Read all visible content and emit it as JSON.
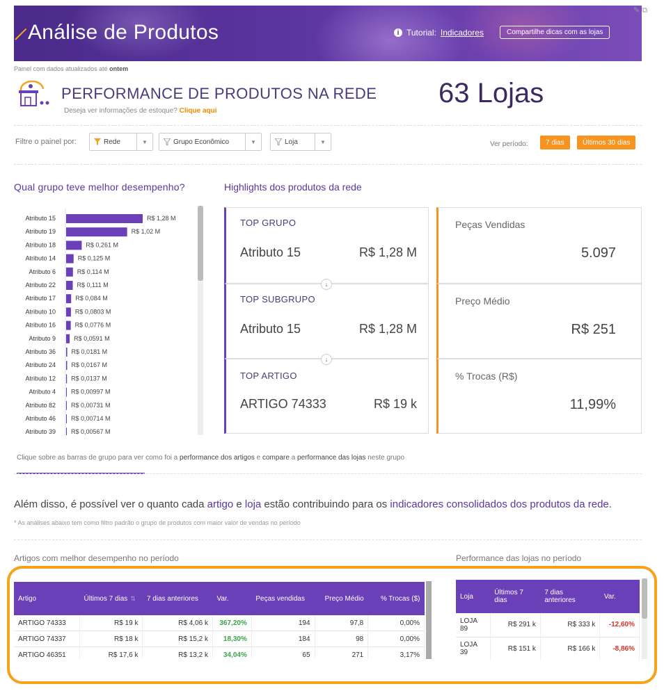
{
  "banner": {
    "title": "Análise de Produtos",
    "tutorial_label": "Tutorial:",
    "tutorial_link": "Indicadores",
    "share_button": "Compartilhe dicas com as lojas",
    "corner_icons": "✎ ⧉"
  },
  "updated": {
    "prefix": "Painel com dados atualizados até",
    "value": "ontem"
  },
  "performance": {
    "title": "PERFORMANCE DE PRODUTOS NA REDE",
    "sub_text": "Deseja ver informações de estoque?",
    "sub_link": "Clique aqui",
    "lojas": "63 Lojas"
  },
  "filters": {
    "label": "Filtre o painel por:",
    "buttons": [
      "Rede",
      "Grupo Econômico",
      "Loja"
    ],
    "periodo_label": "Ver período:",
    "period_buttons": [
      "7 dias",
      "Últimos 30 dias"
    ]
  },
  "group_chart": {
    "title": "Qual grupo teve melhor desempenho?"
  },
  "chart_data": {
    "type": "bar",
    "orientation": "horizontal",
    "color": "#6b3fb8",
    "categories": [
      "Atributo 15",
      "Atributo 19",
      "Atributo 18",
      "Atributo 14",
      "Atributo 6",
      "Atributo 22",
      "Atributo 17",
      "Atributo 10",
      "Atributo 16",
      "Atributo 9",
      "Atributo 36",
      "Atributo 24",
      "Atributo 12",
      "Atributo 4",
      "Atributo 82",
      "Atributo 46",
      "Atributo 39"
    ],
    "values": [
      1.28,
      1.02,
      0.261,
      0.125,
      0.114,
      0.111,
      0.084,
      0.0803,
      0.0776,
      0.0591,
      0.0181,
      0.0167,
      0.0137,
      0.00997,
      0.00731,
      0.00714,
      0.00567
    ],
    "labels": [
      "R$ 1,28 M",
      "R$ 1,02 M",
      "R$ 0,261 M",
      "R$ 0,125 M",
      "R$ 0,114 M",
      "R$ 0,111 M",
      "R$ 0,084 M",
      "R$ 0,0803 M",
      "R$ 0,0776 M",
      "R$ 0,0591 M",
      "R$ 0,0181 M",
      "R$ 0,0167 M",
      "R$ 0,0137 M",
      "R$ 0,00997 M",
      "R$ 0,00731 M",
      "R$ 0,00714 M",
      "R$ 0,00567 M"
    ]
  },
  "highlights": {
    "title": "Highlights dos produtos da rede",
    "top_grupo": {
      "label": "TOP GRUPO",
      "name": "Atributo 15",
      "value": "R$ 1,28 M"
    },
    "top_subgrupo": {
      "label": "TOP SUBGRUPO",
      "name": "Atributo 15",
      "value": "R$ 1,28 M"
    },
    "top_artigo": {
      "label": "TOP ARTIGO",
      "name": "ARTIGO 74333",
      "value": "R$ 19 k"
    },
    "pecas": {
      "label": "Peças Vendidas",
      "value": "5.097"
    },
    "preco": {
      "label": "Preço Médio",
      "value": "R$ 251"
    },
    "trocas": {
      "label": "% Trocas (R$)",
      "value": "11,99%"
    }
  },
  "click_note": {
    "t1": "Clique sobre as barras de grupo para ver como foi a",
    "b1": "performance dos artigos",
    "t2": "e",
    "b2": "compare",
    "t3": "a",
    "b3": "performance das lojas",
    "t4": "neste grupo"
  },
  "alem": {
    "t1": "Além disso, é possível ver o quanto cada",
    "h1": "artigo",
    "t2": "e",
    "h2": "loja",
    "t3": "estão contribuindo para os",
    "h3": "indicadores consolidados dos produtos da rede",
    "t4": "."
  },
  "asterisk": "* As análises abaixo tem como filtro padrão o grupo de produtos com maior valor de vendas no período",
  "artigos": {
    "title": "Artigos com melhor desempenho no período",
    "headers": [
      "Artigo",
      "Últimos 7 dias",
      "7 dias anteriores",
      "Var.",
      "Peças vendidas",
      "Preço Médio",
      "% Trocas ($)"
    ],
    "rows": [
      [
        "ARTIGO 74333",
        "R$ 19 k",
        "R$ 4,06 k",
        "367,20%",
        "194",
        "97,8",
        "0,00%"
      ],
      [
        "ARTIGO 74337",
        "R$ 18 k",
        "R$ 15,2 k",
        "18,30%",
        "184",
        "98",
        "0,00%"
      ],
      [
        "ARTIGO 46351",
        "R$ 17,6 k",
        "R$ 13,2 k",
        "34,04%",
        "65",
        "271",
        "3,17%"
      ]
    ]
  },
  "lojas_table": {
    "title": "Performance das lojas no período",
    "headers": [
      "Loja",
      "Últimos 7 dias",
      "7 dias anteriores",
      "Var."
    ],
    "rows": [
      [
        "LOJA 89",
        "R$ 291 k",
        "R$ 333 k",
        "-12,60%"
      ],
      [
        "LOJA 39",
        "R$ 151 k",
        "R$ 166 k",
        "-8,86%"
      ]
    ]
  }
}
